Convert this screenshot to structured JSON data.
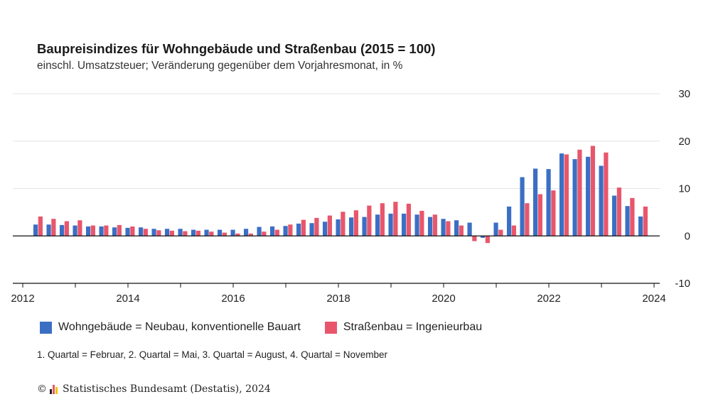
{
  "header": {
    "title": "Baupreisindizes für Wohngebäude und Straßenbau (2015 = 100)",
    "subtitle": "einschl. Umsatzsteuer; Veränderung gegenüber dem Vorjahresmonat, in %"
  },
  "legend": {
    "items": [
      {
        "label": "Wohngebäude = Neubau, konventionelle Bauart",
        "color": "#3b6fc4"
      },
      {
        "label": "Straßenbau = Ingenieurbau",
        "color": "#e8566b"
      }
    ]
  },
  "footnote": "1. Quartal = Februar, 2. Quartal = Mai, 3. Quartal = August, 4. Quartal = November",
  "source": {
    "copyright_symbol": "©",
    "text": "Statistisches Bundesamt (Destatis), 2024",
    "logo_colors": [
      "#222222",
      "#e8566b",
      "#f2c200"
    ]
  },
  "chart_data": {
    "type": "bar",
    "x_axis": {
      "start": 2012.0,
      "end": 2024.0,
      "ticks": [
        2012,
        2014,
        2016,
        2018,
        2020,
        2022,
        2024
      ],
      "tick_labels": [
        "2012",
        "2014",
        "2016",
        "2018",
        "2020",
        "2022",
        "2024"
      ]
    },
    "y_axis": {
      "position": "right",
      "range": [
        -10,
        30
      ],
      "ticks": [
        -10,
        0,
        10,
        20,
        30
      ],
      "tick_labels": [
        "-10",
        "0",
        "10",
        "20",
        "30"
      ],
      "gridlines": true
    },
    "categories": [
      "2012 Q2",
      "2012 Q3",
      "2012 Q4",
      "2013 Q1",
      "2013 Q2",
      "2013 Q3",
      "2013 Q4",
      "2014 Q1",
      "2014 Q2",
      "2014 Q3",
      "2014 Q4",
      "2015 Q1",
      "2015 Q2",
      "2015 Q3",
      "2015 Q4",
      "2016 Q1",
      "2016 Q2",
      "2016 Q3",
      "2016 Q4",
      "2017 Q1",
      "2017 Q2",
      "2017 Q3",
      "2017 Q4",
      "2018 Q1",
      "2018 Q2",
      "2018 Q3",
      "2018 Q4",
      "2019 Q1",
      "2019 Q2",
      "2019 Q3",
      "2019 Q4",
      "2020 Q1",
      "2020 Q2",
      "2020 Q3",
      "2020 Q4",
      "2021 Q1",
      "2021 Q2",
      "2021 Q3",
      "2021 Q4",
      "2022 Q1",
      "2022 Q2",
      "2022 Q3",
      "2022 Q4",
      "2023 Q1",
      "2023 Q2",
      "2023 Q3",
      "2023 Q4"
    ],
    "x_positions": [
      2012.29,
      2012.54,
      2012.79,
      2013.04,
      2013.29,
      2013.54,
      2013.79,
      2014.04,
      2014.29,
      2014.54,
      2014.79,
      2015.04,
      2015.29,
      2015.54,
      2015.79,
      2016.04,
      2016.29,
      2016.54,
      2016.79,
      2017.04,
      2017.29,
      2017.54,
      2017.79,
      2018.04,
      2018.29,
      2018.54,
      2018.79,
      2019.04,
      2019.29,
      2019.54,
      2019.79,
      2020.04,
      2020.29,
      2020.54,
      2020.79,
      2021.04,
      2021.29,
      2021.54,
      2021.79,
      2022.04,
      2022.29,
      2022.54,
      2022.79,
      2023.04,
      2023.29,
      2023.54,
      2023.79
    ],
    "series": [
      {
        "name": "Wohngebäude = Neubau, konventionelle Bauart",
        "color": "#3b6fc4",
        "values": [
          2.4,
          2.4,
          2.3,
          2.2,
          2.0,
          2.0,
          1.8,
          1.7,
          1.8,
          1.5,
          1.5,
          1.5,
          1.3,
          1.3,
          1.3,
          1.3,
          1.5,
          1.9,
          2.0,
          2.1,
          2.6,
          2.7,
          3.0,
          3.5,
          3.9,
          4.0,
          4.5,
          4.7,
          4.7,
          4.5,
          4.0,
          3.6,
          3.3,
          2.8,
          -0.4,
          2.8,
          6.2,
          12.4,
          14.2,
          14.1,
          17.4,
          16.2,
          16.7,
          14.8,
          8.5,
          6.3,
          4.1
        ]
      },
      {
        "name": "Straßenbau = Ingenieurbau",
        "color": "#e8566b",
        "values": [
          4.1,
          3.6,
          3.1,
          3.3,
          2.2,
          2.2,
          2.3,
          2.0,
          1.5,
          1.2,
          1.1,
          1.0,
          1.1,
          0.9,
          0.7,
          0.5,
          0.5,
          0.9,
          1.3,
          2.4,
          3.4,
          3.8,
          4.3,
          5.1,
          5.4,
          6.4,
          6.9,
          7.2,
          6.8,
          5.3,
          4.5,
          3.1,
          2.2,
          -1.1,
          -1.5,
          1.3,
          2.2,
          6.9,
          8.8,
          9.6,
          17.2,
          18.2,
          19.0,
          17.6,
          10.2,
          8.0,
          6.2
        ]
      }
    ]
  }
}
